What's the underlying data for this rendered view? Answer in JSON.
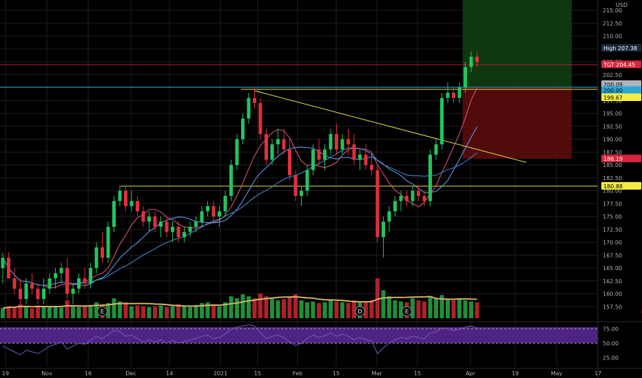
{
  "chart_data": [
    {
      "type": "candlestick",
      "symbol_note": "",
      "currency_label": "USD",
      "ylim": [
        155.0,
        217.0
      ],
      "y_ticks": [
        "157.50",
        "160.00",
        "162.50",
        "165.00",
        "167.50",
        "170.00",
        "172.50",
        "175.00",
        "177.50",
        "180.00",
        "182.50",
        "185.00",
        "187.50",
        "190.00",
        "192.50",
        "195.00",
        "197.50",
        "200.00",
        "202.50",
        "205.00",
        "207.50",
        "210.00",
        "212.50",
        "215.00"
      ],
      "x_ticks": [
        "19",
        "Nov",
        "16",
        "Dec",
        "14",
        "2021",
        "15",
        "Feb",
        "15",
        "Mar",
        "15",
        "Apr",
        "19",
        "May",
        "17"
      ],
      "candles": [
        [
          165,
          168,
          162,
          167
        ],
        [
          167,
          168,
          163,
          163
        ],
        [
          163,
          165,
          160,
          161
        ],
        [
          161,
          163,
          158,
          159
        ],
        [
          159,
          163,
          158,
          162
        ],
        [
          162,
          164,
          160,
          161
        ],
        [
          161,
          162,
          158,
          159
        ],
        [
          159,
          163,
          158,
          161
        ],
        [
          161,
          164,
          160,
          163
        ],
        [
          163,
          165,
          161,
          164
        ],
        [
          164,
          166,
          162,
          165
        ],
        [
          165,
          167,
          159,
          160
        ],
        [
          160,
          162,
          158,
          161
        ],
        [
          161,
          164,
          160,
          163
        ],
        [
          163,
          165,
          161,
          162
        ],
        [
          162,
          166,
          161,
          165
        ],
        [
          165,
          170,
          164,
          169
        ],
        [
          169,
          172,
          166,
          167
        ],
        [
          167,
          174,
          166,
          173
        ],
        [
          173,
          179,
          172,
          178
        ],
        [
          178,
          181,
          177,
          180
        ],
        [
          180,
          181,
          176,
          177
        ],
        [
          177,
          180,
          176,
          178
        ],
        [
          178,
          179,
          175,
          176
        ],
        [
          176,
          177,
          173,
          174
        ],
        [
          174,
          176,
          172,
          175
        ],
        [
          175,
          176,
          172,
          173
        ],
        [
          173,
          175,
          171,
          174
        ],
        [
          174,
          175,
          171,
          172
        ],
        [
          172,
          174,
          170,
          173
        ],
        [
          173,
          174,
          170,
          171
        ],
        [
          171,
          173,
          170,
          172
        ],
        [
          172,
          174,
          171,
          173
        ],
        [
          173,
          175,
          172,
          174
        ],
        [
          174,
          177,
          173,
          176
        ],
        [
          176,
          178,
          175,
          177
        ],
        [
          177,
          178,
          174,
          175
        ],
        [
          175,
          177,
          173,
          176
        ],
        [
          176,
          180,
          175,
          179
        ],
        [
          179,
          186,
          178,
          185
        ],
        [
          185,
          191,
          184,
          190
        ],
        [
          190,
          195,
          189,
          194
        ],
        [
          194,
          199,
          193,
          198
        ],
        [
          198,
          200,
          196,
          197
        ],
        [
          197,
          198,
          190,
          191
        ],
        [
          191,
          192,
          185,
          186
        ],
        [
          186,
          190,
          185,
          189
        ],
        [
          189,
          192,
          187,
          190
        ],
        [
          190,
          192,
          187,
          188
        ],
        [
          188,
          190,
          182,
          183
        ],
        [
          183,
          184,
          178,
          179
        ],
        [
          179,
          181,
          177,
          180
        ],
        [
          180,
          185,
          179,
          184
        ],
        [
          184,
          189,
          183,
          188
        ],
        [
          188,
          190,
          185,
          186
        ],
        [
          186,
          189,
          184,
          188
        ],
        [
          188,
          192,
          187,
          191
        ],
        [
          191,
          193,
          187,
          188
        ],
        [
          188,
          191,
          187,
          190
        ],
        [
          190,
          192,
          187,
          189
        ],
        [
          189,
          191,
          185,
          186
        ],
        [
          186,
          188,
          184,
          187
        ],
        [
          187,
          189,
          184,
          185
        ],
        [
          185,
          187,
          183,
          184
        ],
        [
          184,
          185,
          170,
          171
        ],
        [
          171,
          175,
          167,
          174
        ],
        [
          174,
          177,
          172,
          176
        ],
        [
          176,
          179,
          175,
          178
        ],
        [
          178,
          180,
          176,
          179
        ],
        [
          179,
          180,
          177,
          178
        ],
        [
          178,
          181,
          177,
          180
        ],
        [
          180,
          181,
          178,
          179
        ],
        [
          179,
          180,
          177,
          178
        ],
        [
          178,
          188,
          177,
          187
        ],
        [
          187,
          190,
          186,
          189
        ],
        [
          189,
          199,
          188,
          198
        ],
        [
          198,
          201,
          197,
          199
        ],
        [
          199,
          200,
          197,
          198
        ],
        [
          198,
          201,
          197,
          200
        ],
        [
          200,
          205,
          199,
          204
        ],
        [
          204,
          207,
          203,
          206
        ],
        [
          206,
          207,
          204,
          205
        ]
      ],
      "volume": [
        0.25,
        0.3,
        0.28,
        0.35,
        0.3,
        0.25,
        0.32,
        0.3,
        0.28,
        0.3,
        0.27,
        0.45,
        0.3,
        0.28,
        0.3,
        0.32,
        0.4,
        0.35,
        0.38,
        0.5,
        0.42,
        0.4,
        0.3,
        0.32,
        0.3,
        0.28,
        0.3,
        0.32,
        0.28,
        0.3,
        0.35,
        0.3,
        0.28,
        0.33,
        0.38,
        0.4,
        0.35,
        0.3,
        0.4,
        0.55,
        0.5,
        0.6,
        0.55,
        0.5,
        0.62,
        0.55,
        0.5,
        0.45,
        0.48,
        0.55,
        0.6,
        0.45,
        0.4,
        0.42,
        0.38,
        0.4,
        0.45,
        0.42,
        0.4,
        0.38,
        0.45,
        0.42,
        0.4,
        0.45,
        1.0,
        0.7,
        0.55,
        0.45,
        0.42,
        0.4,
        0.5,
        0.45,
        0.42,
        0.55,
        0.5,
        0.58,
        0.48,
        0.45,
        0.5,
        0.45,
        0.42,
        0.4
      ],
      "rsi_panel": {
        "ylim": [
          10,
          85
        ],
        "y_ticks": [
          "75.00",
          "50.00",
          "25.00"
        ],
        "band_high": 70,
        "band_low": 30,
        "values": [
          45,
          40,
          35,
          30,
          38,
          35,
          32,
          38,
          45,
          48,
          52,
          40,
          45,
          50,
          48,
          55,
          62,
          58,
          65,
          72,
          70,
          62,
          64,
          58,
          52,
          56,
          52,
          56,
          50,
          55,
          50,
          53,
          56,
          58,
          62,
          64,
          58,
          60,
          66,
          74,
          78,
          80,
          82,
          80,
          68,
          58,
          62,
          64,
          60,
          52,
          46,
          50,
          58,
          64,
          60,
          63,
          68,
          62,
          66,
          62,
          56,
          60,
          56,
          54,
          32,
          42,
          50,
          56,
          60,
          58,
          62,
          60,
          58,
          68,
          70,
          76,
          75,
          72,
          74,
          78,
          80,
          76
        ]
      },
      "moving_averages_note": "",
      "horizontal_lines": [
        {
          "label": "",
          "value": 200.09,
          "color": "#2ea9d6"
        },
        {
          "label": "",
          "value": 199.67,
          "color": "#e8e84d"
        },
        {
          "label": "",
          "value": 180.88,
          "color": "#e8e84d"
        },
        {
          "label": "",
          "value": 204.45,
          "color": "#c2183b"
        }
      ],
      "trendline": {
        "from": [
          43,
          199.4
        ],
        "to": [
          88,
          185.5
        ],
        "color": "#e8e84d"
      },
      "position_box": {
        "entry": 200.0,
        "target": 217.0,
        "stop": 186.19,
        "start_index": 79,
        "end_index": 103
      },
      "price_tags": [
        {
          "name": "high",
          "text_label": "High",
          "text_value": "207.38",
          "value": 207.38,
          "bg": "#1a2a3a",
          "fg": "#ffffff"
        },
        {
          "name": "tgt",
          "text_label": "TGT",
          "text_value": "204.45",
          "value": 204.45,
          "bg": "#d7263d",
          "fg": "#ffffff"
        },
        {
          "name": "level-200-09",
          "text_label": "",
          "text_value": "200.09",
          "value": 200.09,
          "bg": "#b2b5be",
          "fg": "#000000"
        },
        {
          "name": "level-200-00",
          "text_label": "",
          "text_value": "200.00",
          "value": 200.0,
          "bg": "#2ea9d6",
          "fg": "#000000"
        },
        {
          "name": "level-199-67",
          "text_label": "",
          "text_value": "199.67",
          "value": 199.67,
          "bg": "#f5ec42",
          "fg": "#000000"
        },
        {
          "name": "stop",
          "text_label": "",
          "text_value": "186.19",
          "value": 186.19,
          "bg": "#d7263d",
          "fg": "#ffffff"
        },
        {
          "name": "level-180-88",
          "text_label": "",
          "text_value": "180.88",
          "value": 180.88,
          "bg": "#f5ec42",
          "fg": "#000000"
        }
      ],
      "event_markers": [
        {
          "label": "E",
          "index": 17
        },
        {
          "label": "D",
          "index": 61
        },
        {
          "label": "E",
          "index": 69
        },
        {
          "label": "E",
          "index": 110
        }
      ],
      "colors": {
        "up": "#26a69a",
        "up_bright": "#22c55e",
        "down": "#e0303a",
        "grid": "#1f1f1f",
        "ma_pink": "#e85a8a",
        "ma_blue1": "#4a90d9",
        "ma_blue2": "#6aa8ff",
        "vol_ma": "#d6b36a",
        "rsi_line": "#7e57c2",
        "rsi_band": "#5b2a9a"
      }
    }
  ]
}
